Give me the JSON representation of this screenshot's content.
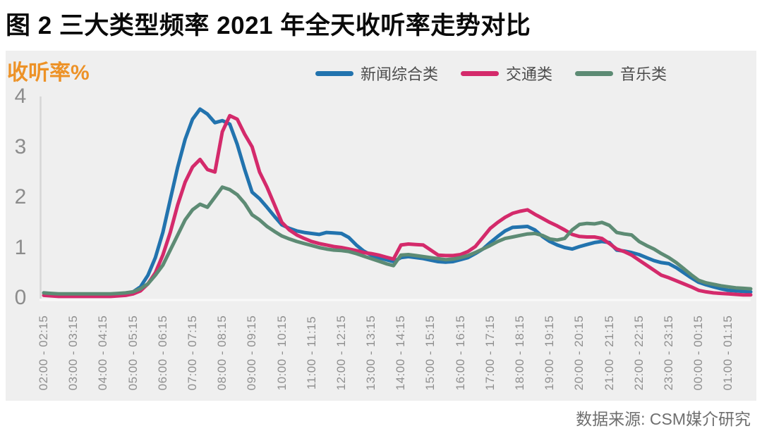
{
  "title": "图 2 三大类型频率 2021 年全天收听率走势对比",
  "y_axis_title": "收听率%",
  "source": "数据来源: CSM媒介研究",
  "colors": {
    "news_blue": "#2273AE",
    "traffic_magenta": "#D42A6B",
    "music_green": "#5D8B74",
    "accent_orange": "#ED9227",
    "panel_bg": "#efefef",
    "axis_line": "#d6d6d6",
    "tick_text": "#8c8c8c"
  },
  "chart_data": {
    "type": "line",
    "title": "图 2 三大类型频率 2021 年全天收听率走势对比",
    "ylabel": "收听率%",
    "ylim": [
      0,
      4
    ],
    "y_ticks": [
      0,
      1,
      2,
      3,
      4
    ],
    "grid": false,
    "legend_position": "top",
    "interval_minutes": 15,
    "x_start": "02:00",
    "x_hour_labels": [
      "02:00 - 02:15",
      "03:00 - 03:15",
      "04:00 - 04:15",
      "05:00 - 05:15",
      "06:00 - 06:15",
      "07:00 - 07:15",
      "08:00 - 08:15",
      "09:00 - 09:15",
      "10:00 - 10:15",
      "11:00 - 11:15",
      "12:00 - 12:15",
      "13:00 - 13:15",
      "14:00 - 14:15",
      "15:00 - 15:15",
      "16:00 - 16:15",
      "17:00 - 17:15",
      "18:00 - 18:15",
      "19:00 - 19:15",
      "20:00 - 20:15",
      "21:00 - 21:15",
      "22:00 - 22:15",
      "23:00 - 23:15",
      "00:00 - 00:15",
      "01:00 - 01:15"
    ],
    "series": [
      {
        "name": "新闻综合类",
        "color": "#2273AE",
        "values": [
          0.1,
          0.08,
          0.07,
          0.07,
          0.07,
          0.07,
          0.07,
          0.07,
          0.07,
          0.07,
          0.08,
          0.09,
          0.12,
          0.22,
          0.45,
          0.8,
          1.3,
          1.95,
          2.6,
          3.15,
          3.55,
          3.75,
          3.65,
          3.48,
          3.52,
          3.45,
          3.05,
          2.55,
          2.1,
          1.97,
          1.8,
          1.62,
          1.45,
          1.38,
          1.33,
          1.3,
          1.28,
          1.26,
          1.3,
          1.29,
          1.28,
          1.2,
          1.05,
          0.93,
          0.85,
          0.8,
          0.76,
          0.72,
          0.8,
          0.82,
          0.8,
          0.78,
          0.75,
          0.72,
          0.71,
          0.72,
          0.76,
          0.8,
          0.88,
          0.97,
          1.1,
          1.22,
          1.33,
          1.4,
          1.41,
          1.42,
          1.35,
          1.22,
          1.12,
          1.05,
          1.0,
          0.97,
          1.02,
          1.06,
          1.1,
          1.12,
          1.1,
          0.95,
          0.93,
          0.9,
          0.86,
          0.8,
          0.74,
          0.7,
          0.68,
          0.6,
          0.5,
          0.4,
          0.31,
          0.26,
          0.22,
          0.18,
          0.15,
          0.14,
          0.13,
          0.12
        ]
      },
      {
        "name": "交通类",
        "color": "#D42A6B",
        "values": [
          0.05,
          0.04,
          0.03,
          0.03,
          0.03,
          0.03,
          0.03,
          0.03,
          0.03,
          0.03,
          0.04,
          0.05,
          0.08,
          0.14,
          0.28,
          0.5,
          0.85,
          1.3,
          1.85,
          2.3,
          2.6,
          2.75,
          2.55,
          2.5,
          3.3,
          3.62,
          3.55,
          3.25,
          3.0,
          2.5,
          2.2,
          1.85,
          1.5,
          1.35,
          1.25,
          1.18,
          1.12,
          1.08,
          1.05,
          1.02,
          1.0,
          0.97,
          0.94,
          0.9,
          0.88,
          0.85,
          0.81,
          0.77,
          1.05,
          1.07,
          1.06,
          1.05,
          0.95,
          0.85,
          0.84,
          0.84,
          0.86,
          0.92,
          1.02,
          1.2,
          1.38,
          1.5,
          1.6,
          1.68,
          1.72,
          1.75,
          1.66,
          1.58,
          1.5,
          1.43,
          1.35,
          1.26,
          1.22,
          1.21,
          1.21,
          1.18,
          1.08,
          0.97,
          0.92,
          0.85,
          0.75,
          0.65,
          0.55,
          0.45,
          0.4,
          0.34,
          0.28,
          0.22,
          0.15,
          0.12,
          0.1,
          0.09,
          0.08,
          0.07,
          0.06,
          0.06
        ]
      },
      {
        "name": "音乐类",
        "color": "#5D8B74",
        "values": [
          0.1,
          0.09,
          0.08,
          0.08,
          0.08,
          0.08,
          0.08,
          0.08,
          0.08,
          0.08,
          0.09,
          0.1,
          0.12,
          0.18,
          0.28,
          0.45,
          0.65,
          0.95,
          1.25,
          1.55,
          1.75,
          1.86,
          1.8,
          2.0,
          2.2,
          2.15,
          2.05,
          1.88,
          1.65,
          1.55,
          1.42,
          1.32,
          1.23,
          1.17,
          1.12,
          1.08,
          1.04,
          1.0,
          0.97,
          0.95,
          0.94,
          0.92,
          0.88,
          0.83,
          0.78,
          0.73,
          0.68,
          0.64,
          0.85,
          0.86,
          0.84,
          0.82,
          0.8,
          0.78,
          0.76,
          0.77,
          0.8,
          0.84,
          0.9,
          0.97,
          1.04,
          1.12,
          1.18,
          1.21,
          1.24,
          1.27,
          1.28,
          1.24,
          1.17,
          1.15,
          1.18,
          1.35,
          1.46,
          1.48,
          1.47,
          1.5,
          1.44,
          1.3,
          1.27,
          1.25,
          1.12,
          1.04,
          0.97,
          0.88,
          0.8,
          0.7,
          0.58,
          0.46,
          0.35,
          0.3,
          0.27,
          0.24,
          0.22,
          0.2,
          0.19,
          0.18
        ]
      }
    ]
  }
}
